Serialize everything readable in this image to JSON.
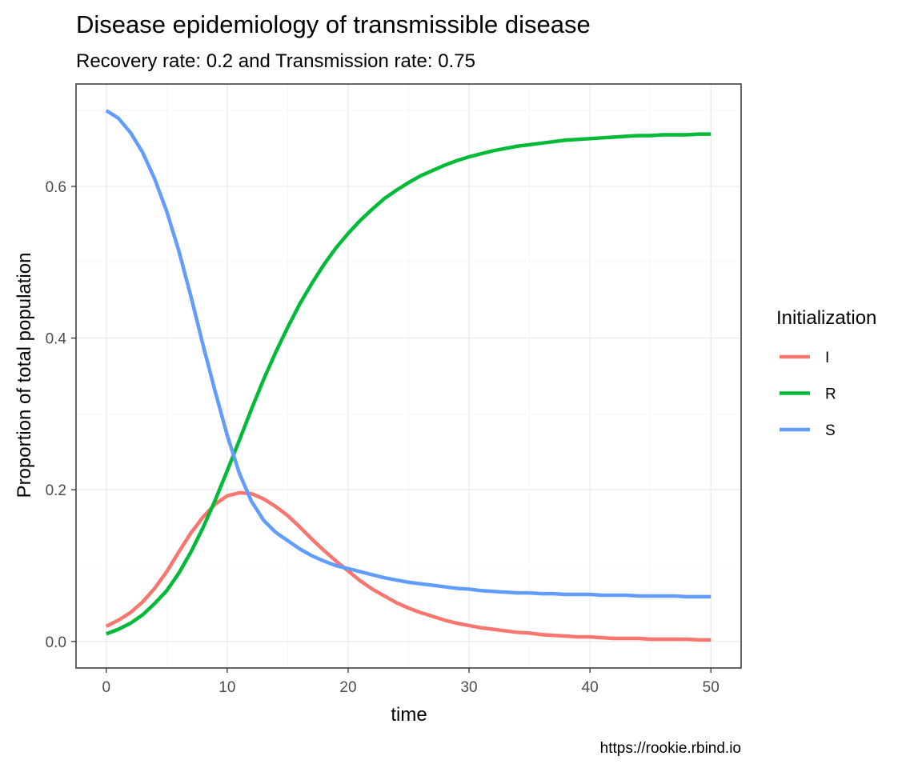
{
  "chart_data": {
    "type": "line",
    "title": "Disease epidemiology of transmissible disease",
    "subtitle": "Recovery rate: 0.2 and Transmission rate: 0.75",
    "xlabel": "time",
    "ylabel": "Proportion of total population",
    "caption": "https://rookie.rbind.io",
    "xlim": [
      -2.5,
      52.5
    ],
    "ylim": [
      -0.035,
      0.735
    ],
    "x_ticks": [
      0,
      10,
      20,
      30,
      40,
      50
    ],
    "x_tick_labels": [
      "0",
      "10",
      "20",
      "30",
      "40",
      "50"
    ],
    "y_ticks": [
      0.0,
      0.2,
      0.4,
      0.6
    ],
    "y_tick_labels": [
      "0.0",
      "0.2",
      "0.4",
      "0.6"
    ],
    "grid": true,
    "legend": {
      "title": "Initialization",
      "position": "right"
    },
    "x": [
      0,
      1,
      2,
      3,
      4,
      5,
      6,
      7,
      8,
      9,
      10,
      11,
      12,
      13,
      14,
      15,
      16,
      17,
      18,
      19,
      20,
      21,
      22,
      23,
      24,
      25,
      26,
      27,
      28,
      29,
      30,
      31,
      32,
      33,
      34,
      35,
      36,
      37,
      38,
      39,
      40,
      41,
      42,
      43,
      44,
      45,
      46,
      47,
      48,
      49,
      50
    ],
    "series": [
      {
        "name": "I",
        "color": "#F8766D",
        "values": [
          0.02,
          0.028,
          0.038,
          0.052,
          0.07,
          0.092,
          0.118,
          0.143,
          0.164,
          0.181,
          0.192,
          0.196,
          0.195,
          0.188,
          0.178,
          0.166,
          0.151,
          0.135,
          0.12,
          0.106,
          0.093,
          0.08,
          0.069,
          0.06,
          0.051,
          0.044,
          0.038,
          0.033,
          0.028,
          0.024,
          0.021,
          0.018,
          0.016,
          0.014,
          0.012,
          0.011,
          0.009,
          0.008,
          0.007,
          0.006,
          0.006,
          0.005,
          0.004,
          0.004,
          0.004,
          0.003,
          0.003,
          0.003,
          0.003,
          0.002,
          0.002
        ]
      },
      {
        "name": "R",
        "color": "#00BA38",
        "values": [
          0.01,
          0.016,
          0.024,
          0.035,
          0.05,
          0.067,
          0.09,
          0.118,
          0.15,
          0.186,
          0.225,
          0.265,
          0.306,
          0.345,
          0.381,
          0.414,
          0.445,
          0.472,
          0.497,
          0.519,
          0.538,
          0.555,
          0.57,
          0.584,
          0.595,
          0.605,
          0.614,
          0.621,
          0.628,
          0.634,
          0.639,
          0.643,
          0.647,
          0.65,
          0.653,
          0.655,
          0.657,
          0.659,
          0.661,
          0.662,
          0.663,
          0.664,
          0.665,
          0.666,
          0.667,
          0.667,
          0.668,
          0.668,
          0.668,
          0.669,
          0.669
        ]
      },
      {
        "name": "S",
        "color": "#619CFF",
        "values": [
          0.7,
          0.69,
          0.671,
          0.645,
          0.61,
          0.567,
          0.515,
          0.455,
          0.391,
          0.33,
          0.272,
          0.222,
          0.185,
          0.16,
          0.144,
          0.133,
          0.122,
          0.113,
          0.106,
          0.1,
          0.096,
          0.092,
          0.088,
          0.084,
          0.081,
          0.078,
          0.076,
          0.074,
          0.072,
          0.07,
          0.069,
          0.067,
          0.066,
          0.065,
          0.064,
          0.064,
          0.063,
          0.063,
          0.062,
          0.062,
          0.062,
          0.061,
          0.061,
          0.061,
          0.06,
          0.06,
          0.06,
          0.06,
          0.059,
          0.059,
          0.059
        ]
      }
    ]
  }
}
